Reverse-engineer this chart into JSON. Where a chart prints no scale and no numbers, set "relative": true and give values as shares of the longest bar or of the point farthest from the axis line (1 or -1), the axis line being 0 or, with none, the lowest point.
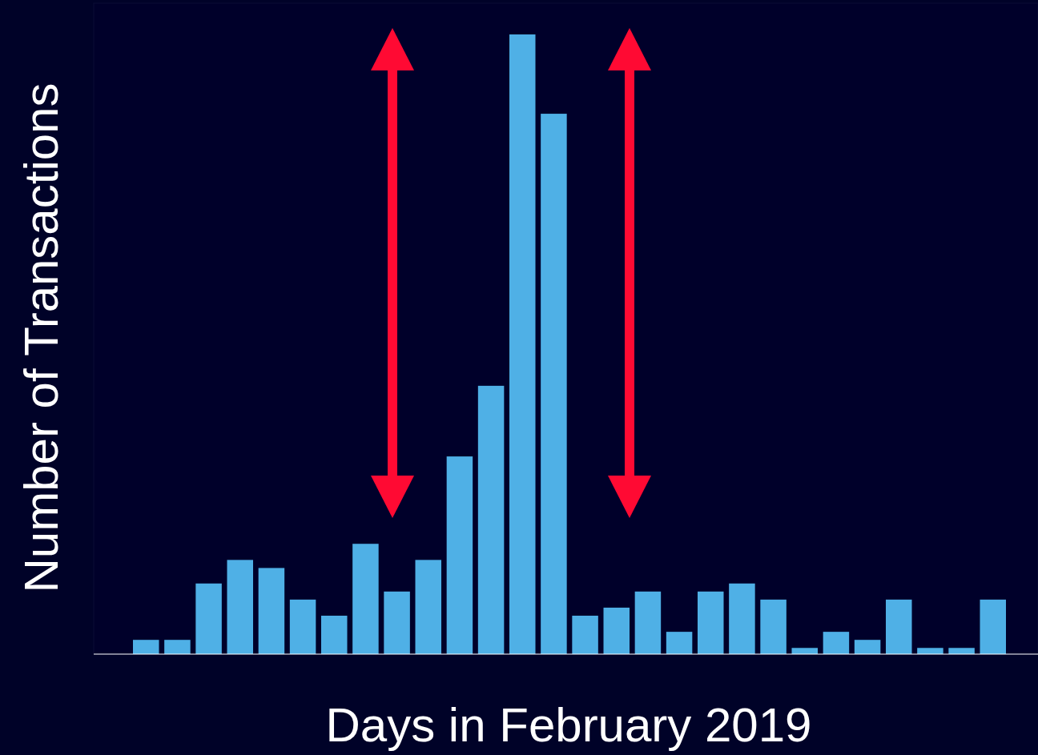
{
  "chart_data": {
    "type": "bar",
    "relative": true,
    "xlabel": "Days in February 2019",
    "ylabel": "Number of Transactions",
    "color": "#4fb0e6",
    "categories": [
      null,
      null,
      null,
      null,
      null,
      null,
      null,
      null,
      null,
      null,
      null,
      null,
      null,
      null,
      null,
      null,
      null,
      null,
      null,
      null,
      null,
      null,
      null,
      null,
      null,
      null,
      null,
      null
    ],
    "values": [
      0.023,
      0.023,
      0.114,
      0.152,
      0.139,
      0.088,
      0.062,
      0.178,
      0.101,
      0.152,
      0.319,
      0.433,
      1,
      0.872,
      0.062,
      0.075,
      0.101,
      0.036,
      0.101,
      0.114,
      0.088,
      0.01,
      0.036,
      0.023,
      0.088,
      0.01,
      0.01,
      0.088
    ],
    "legend": false
  }
}
